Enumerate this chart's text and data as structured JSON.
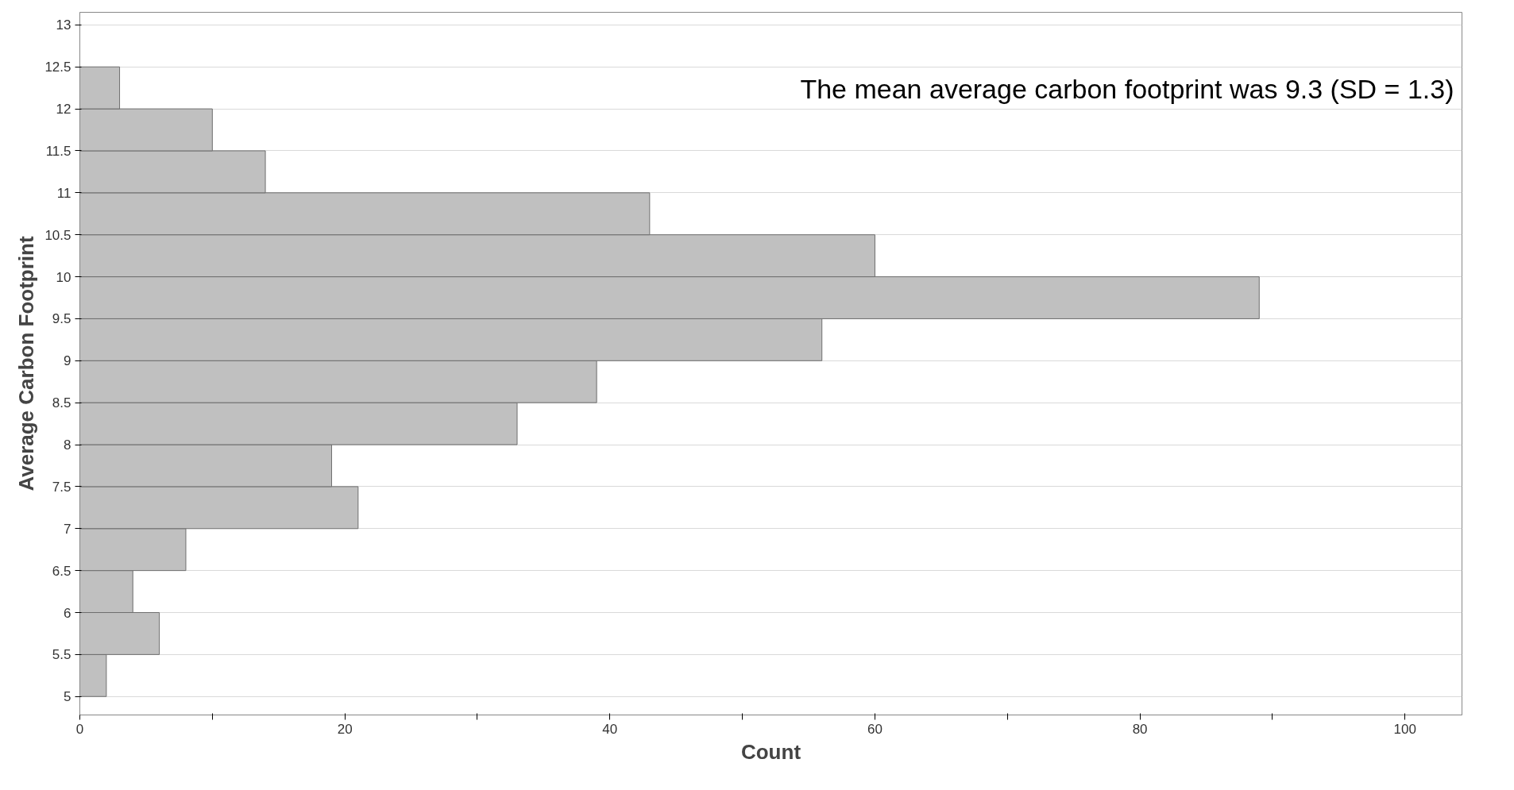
{
  "chart_data": {
    "type": "histogram",
    "orientation": "horizontal",
    "xlabel": "Count",
    "ylabel": "Average Carbon Footprint",
    "bins": [
      5,
      5.5,
      6,
      6.5,
      7,
      7.5,
      8,
      8.5,
      9,
      9.5,
      10,
      10.5,
      11,
      11.5,
      12,
      12.5
    ],
    "values": [
      2,
      6,
      4,
      8,
      21,
      19,
      33,
      39,
      56,
      89,
      60,
      43,
      14,
      10,
      3
    ],
    "color": "#c0c0c0",
    "xlim": [
      0,
      104.3
    ],
    "ylim": [
      4.78,
      13.15
    ],
    "xticks": [
      0,
      {
        "value": 10,
        "label": null
      },
      20,
      {
        "value": 30,
        "label": null
      },
      40,
      {
        "value": 50,
        "label": null
      },
      60,
      {
        "value": 70,
        "label": null
      },
      80,
      {
        "value": 90,
        "label": null
      },
      100
    ],
    "yticks": [
      5,
      5.5,
      6,
      6.5,
      7,
      7.5,
      8,
      8.5,
      9,
      9.5,
      10,
      10.5,
      11,
      11.5,
      12,
      12.5,
      13
    ],
    "grid": "y",
    "annotations": [
      "The mean average carbon footprint was 9.3 (SD = 1.3)"
    ]
  }
}
